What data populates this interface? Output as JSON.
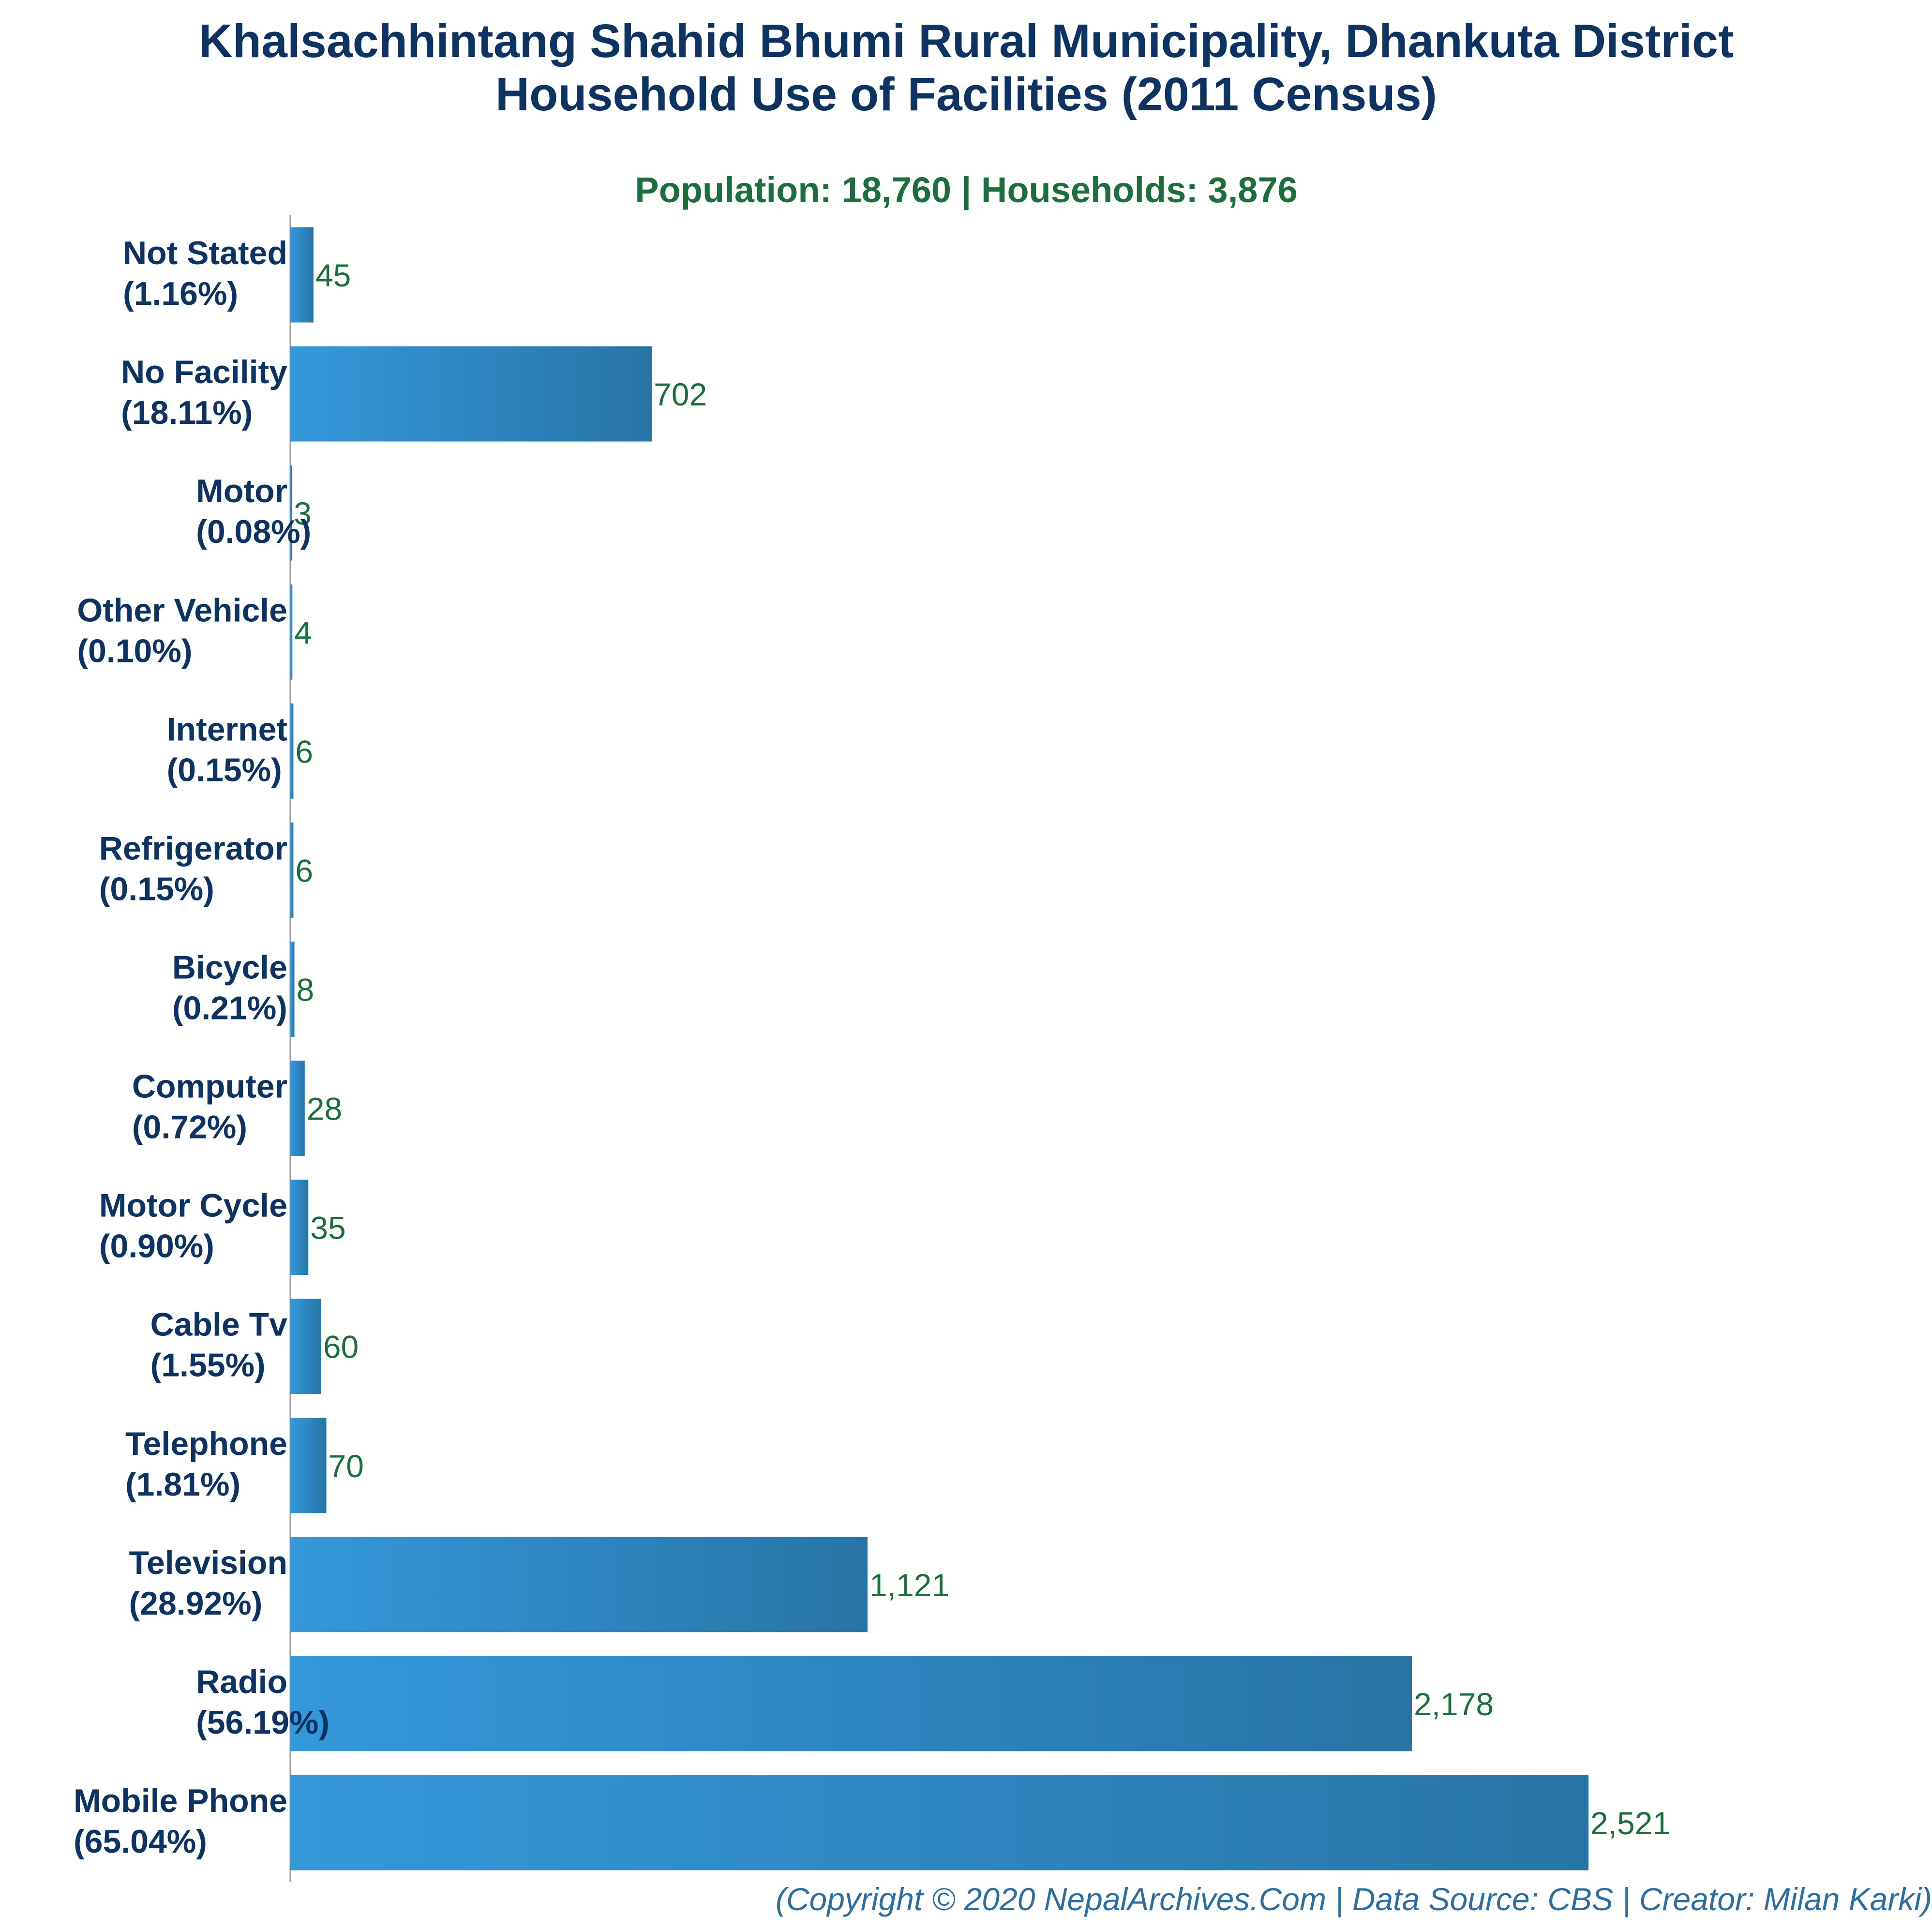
{
  "chart_data": {
    "type": "bar",
    "orientation": "horizontal",
    "title": "Khalsachhintang Shahid Bhumi Rural Municipality, Dhankuta District",
    "title_line2": "Household Use of Facilities (2011 Census)",
    "subtitle": "Population: 18,760 | Households: 3,876",
    "footer": "(Copyright © 2020 NepalArchives.Com | Data Source: CBS | Creator: Milan Karki)",
    "categories": [
      "Not Stated",
      "No Facility",
      "Motor",
      "Other Vehicle",
      "Internet",
      "Refrigerator",
      "Bicycle",
      "Computer",
      "Motor Cycle",
      "Cable Tv",
      "Telephone",
      "Television",
      "Radio",
      "Mobile Phone"
    ],
    "percent_labels": [
      "(1.16%)",
      "(18.11%)",
      "(0.08%)",
      "(0.10%)",
      "(0.15%)",
      "(0.15%)",
      "(0.21%)",
      "(0.72%)",
      "(0.90%)",
      "(1.55%)",
      "(1.81%)",
      "(28.92%)",
      "(56.19%)",
      "(65.04%)"
    ],
    "values": [
      45,
      702,
      3,
      4,
      6,
      6,
      8,
      28,
      35,
      60,
      70,
      1121,
      2178,
      2521
    ],
    "value_labels": [
      "45",
      "702",
      "3",
      "4",
      "6",
      "6",
      "8",
      "28",
      "35",
      "60",
      "70",
      "1,121",
      "2,178",
      "2,521"
    ],
    "xlim": [
      0,
      2521
    ],
    "grid": false,
    "legend": "none",
    "colors": {
      "title": "#0d3362",
      "subtitle": "#1c6e3d",
      "value_label": "#1c6e3d",
      "bar_light": "#3498db",
      "bar_dark": "#2874a6",
      "footer": "#2c6e9e",
      "axis": "#999999"
    }
  }
}
